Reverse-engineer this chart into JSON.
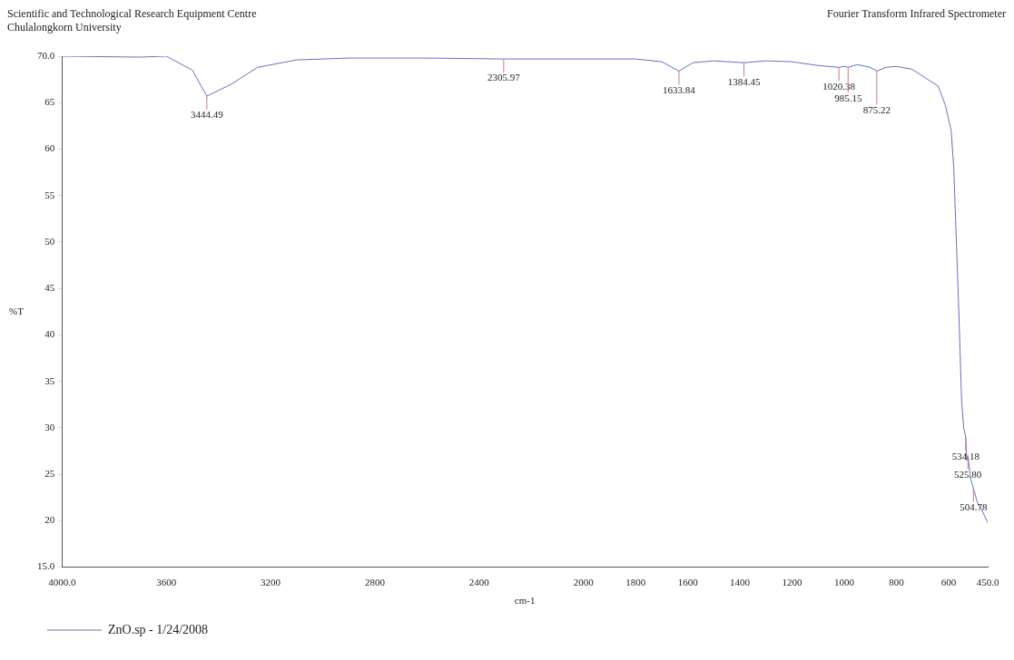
{
  "chart_data": {
    "type": "line",
    "title": "Scientific and Technological Research Equipment Centre",
    "subtitle": "Chulalongkorn University",
    "xlabel": "cm-1",
    "ylabel": "%T",
    "x": [
      4000,
      3700,
      3600,
      3500,
      3444.49,
      3350,
      3250,
      3100,
      2900,
      2600,
      2305.97,
      2000,
      1800,
      1700,
      1633.84,
      1580,
      1500,
      1384.45,
      1300,
      1200,
      1100,
      1020.38,
      1000,
      985.15,
      950,
      900,
      875.22,
      840,
      800,
      740,
      680,
      640,
      612,
      590,
      580,
      575,
      562,
      550,
      542,
      534.18,
      530,
      525.8,
      515,
      504.78,
      490,
      470,
      450
    ],
    "series": [
      {
        "name": "ZnO.sp - 1/24/2008",
        "color": "#6a6fc0",
        "values": [
          70.0,
          69.9,
          70.0,
          68.5,
          65.7,
          67.0,
          68.8,
          69.6,
          69.8,
          69.8,
          69.7,
          69.7,
          69.7,
          69.4,
          68.4,
          69.3,
          69.5,
          69.3,
          69.5,
          69.4,
          69.0,
          68.8,
          68.9,
          68.8,
          69.1,
          68.8,
          68.4,
          68.8,
          68.9,
          68.6,
          67.5,
          66.8,
          64.7,
          62,
          58,
          54,
          43.7,
          33,
          30,
          29.0,
          26.5,
          27.0,
          24.5,
          23.5,
          22.0,
          21.0,
          19.8
        ]
      }
    ],
    "xlim": [
      4000,
      450
    ],
    "xticks": [
      {
        "value": 4000,
        "label": "4000.0"
      },
      3600,
      3200,
      2800,
      2400,
      2000,
      1800,
      1600,
      1400,
      1200,
      1000,
      800,
      600,
      {
        "value": 450,
        "label": "450.0"
      }
    ],
    "ylim": [
      15,
      70
    ],
    "yticks": [
      {
        "value": 15,
        "label": "15.0"
      },
      20,
      25,
      30,
      35,
      40,
      45,
      50,
      55,
      60,
      65,
      {
        "value": 70,
        "label": "70.0"
      }
    ],
    "annotations": [
      "Fourier Transform Infrared Spectrometer",
      {
        "text": "3444.49",
        "x": 3444.49,
        "y": 65.7
      },
      {
        "text": "2305.97",
        "x": 2305.97,
        "y": 69.7
      },
      {
        "text": "1633.84",
        "x": 1633.84,
        "y": 68.4
      },
      {
        "text": "1384.45",
        "x": 1384.45,
        "y": 69.3
      },
      {
        "text": "1020.38",
        "x": 1020.38,
        "y": 68.8
      },
      {
        "text": "985.15",
        "x": 985.15,
        "y": 68.8
      },
      {
        "text": "875.22",
        "x": 875.22,
        "y": 68.4
      },
      {
        "text": "534.18",
        "x": 534.18,
        "y": 29.0
      },
      {
        "text": "525.80",
        "x": 525.8,
        "y": 27.0
      },
      {
        "text": "504.78",
        "x": 504.78,
        "y": 23.5
      }
    ],
    "grid": false,
    "legend": "bottom left",
    "marker": "none",
    "line_style": "solid"
  }
}
